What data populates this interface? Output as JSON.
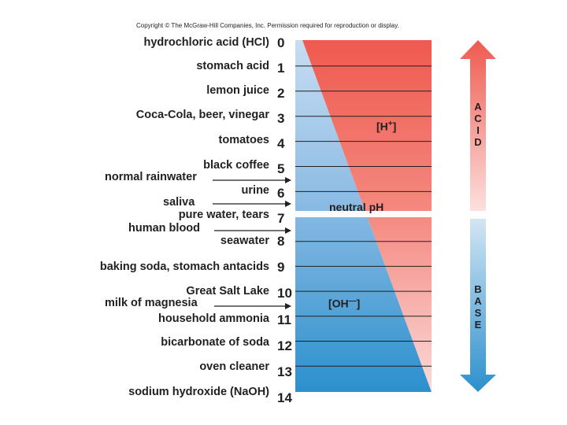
{
  "copyright": "Copyright © The McGraw-Hill Companies, Inc. Permission required for reproduction or display.",
  "ph_numbers": [
    "0",
    "1",
    "2",
    "3",
    "4",
    "5",
    "6",
    "7",
    "8",
    "9",
    "10",
    "11",
    "12",
    "13",
    "14"
  ],
  "substances": [
    {
      "ph": 0,
      "name": "hydrochloric acid (HCl)"
    },
    {
      "ph": 1,
      "name": "stomach acid"
    },
    {
      "ph": 2,
      "name": "lemon juice"
    },
    {
      "ph": 3,
      "name": "Coca-Cola, beer, vinegar"
    },
    {
      "ph": 4,
      "name": "tomatoes"
    },
    {
      "ph": 5,
      "name": "black coffee"
    },
    {
      "ph": 6,
      "name": "urine"
    },
    {
      "ph": 7,
      "name": "pure water, tears"
    },
    {
      "ph": 8,
      "name": "seawater"
    },
    {
      "ph": 9,
      "name": "baking soda, stomach antacids"
    },
    {
      "ph": 10,
      "name": "Great Salt Lake"
    },
    {
      "ph": 11,
      "name": "household ammonia"
    },
    {
      "ph": 12,
      "name": "bicarbonate of soda"
    },
    {
      "ph": 13,
      "name": "oven cleaner"
    },
    {
      "ph": 14,
      "name": "sodium hydroxide (NaOH)"
    }
  ],
  "arrow_labels": [
    {
      "name": "normal rainwater",
      "ph": 5.6
    },
    {
      "name": "saliva",
      "ph": 6.6
    },
    {
      "name": "human blood",
      "ph": 7.4
    },
    {
      "name": "milk of magnesia",
      "ph": 10.5
    }
  ],
  "ions": {
    "h_base": "[H",
    "h_sup": "+",
    "h_close": "]",
    "oh_base": "[OH",
    "oh_sup": "—",
    "oh_close": "]"
  },
  "neutral_label": "neutral pH",
  "side": {
    "acid": "ACID",
    "base": "BASE"
  },
  "colors": {
    "acid_red": "#ef5b50",
    "base_blue": "#2d93cf",
    "light_red": "#fad3d1",
    "light_blue": "#a8cbe9",
    "divider": "#231f20"
  }
}
